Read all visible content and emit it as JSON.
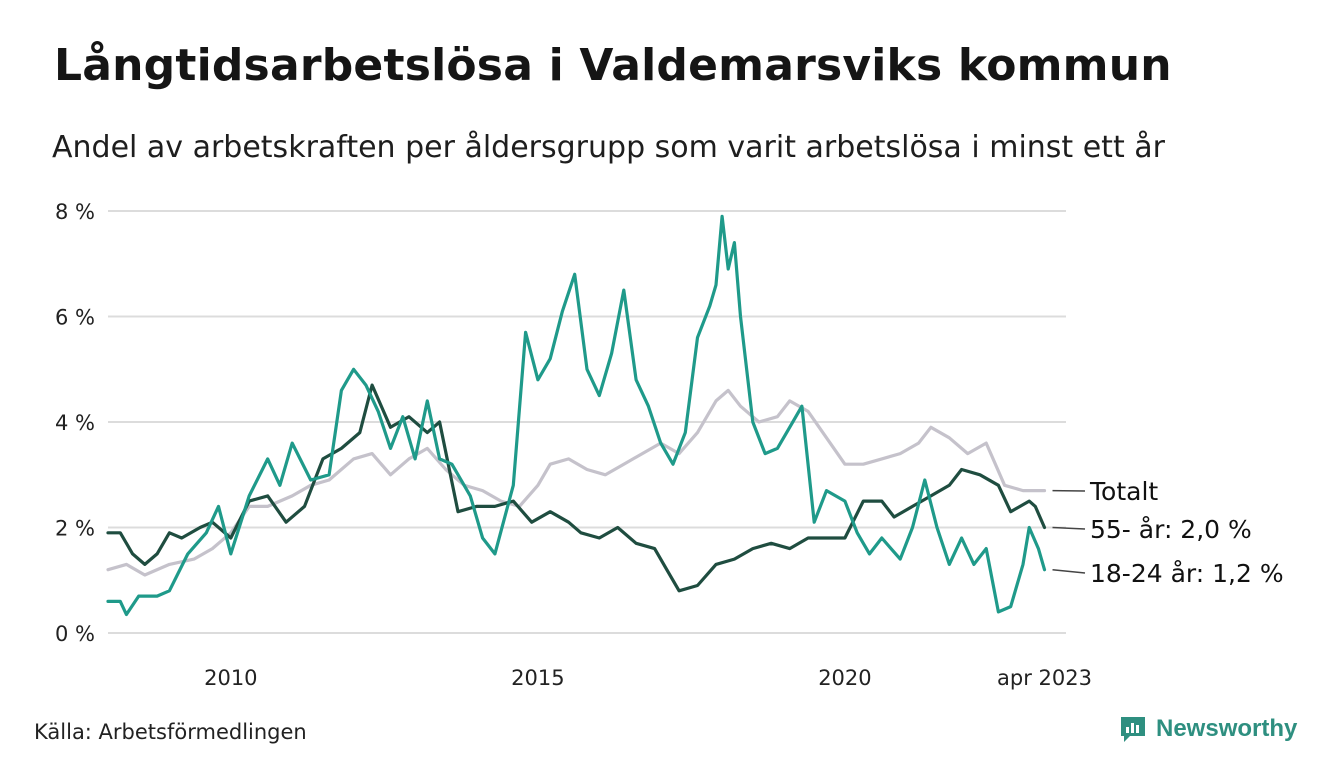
{
  "header": {
    "title": "Långtidsarbetslösa i Valdemarsviks kommun",
    "subtitle": "Andel av arbetskraften per åldersgrupp som varit arbetslösa i minst ett år"
  },
  "footer": {
    "source": "Källa: Arbetsförmedlingen",
    "brand": "Newsworthy"
  },
  "colors": {
    "total": "#c5c2cb",
    "age55": "#1f4d40",
    "age18_24": "#1f9a8a",
    "grid": "#dcdcdc",
    "brand": "#2e8f80"
  },
  "chart_data": {
    "type": "line",
    "title": "Långtidsarbetslösa i Valdemarsviks kommun",
    "xlabel": "",
    "ylabel": "",
    "xlim": [
      2008.0,
      2023.6
    ],
    "ylim": [
      0,
      8
    ],
    "y_ticks": [
      0,
      2,
      4,
      6,
      8
    ],
    "y_tick_labels": [
      "0 %",
      "2 %",
      "4 %",
      "6 %",
      "8 %"
    ],
    "x_ticks": [
      2010,
      2015,
      2020,
      2023.25
    ],
    "x_tick_labels": [
      "2010",
      "2015",
      "2020",
      "apr 2023"
    ],
    "end_labels": [
      "Totalt",
      "55- år: 2,0 %",
      "18-24 år: 1,2 %"
    ],
    "series": [
      {
        "name": "Totalt",
        "color_key": "total",
        "points": [
          [
            2008.0,
            1.2
          ],
          [
            2008.3,
            1.3
          ],
          [
            2008.6,
            1.1
          ],
          [
            2009.0,
            1.3
          ],
          [
            2009.4,
            1.4
          ],
          [
            2009.7,
            1.6
          ],
          [
            2010.0,
            1.9
          ],
          [
            2010.3,
            2.4
          ],
          [
            2010.6,
            2.4
          ],
          [
            2011.0,
            2.6
          ],
          [
            2011.3,
            2.8
          ],
          [
            2011.6,
            2.9
          ],
          [
            2012.0,
            3.3
          ],
          [
            2012.3,
            3.4
          ],
          [
            2012.6,
            3.0
          ],
          [
            2012.9,
            3.3
          ],
          [
            2013.2,
            3.5
          ],
          [
            2013.5,
            3.1
          ],
          [
            2013.8,
            2.8
          ],
          [
            2014.1,
            2.7
          ],
          [
            2014.4,
            2.5
          ],
          [
            2014.7,
            2.4
          ],
          [
            2015.0,
            2.8
          ],
          [
            2015.2,
            3.2
          ],
          [
            2015.5,
            3.3
          ],
          [
            2015.8,
            3.1
          ],
          [
            2016.1,
            3.0
          ],
          [
            2016.4,
            3.2
          ],
          [
            2016.7,
            3.4
          ],
          [
            2017.0,
            3.6
          ],
          [
            2017.3,
            3.4
          ],
          [
            2017.6,
            3.8
          ],
          [
            2017.9,
            4.4
          ],
          [
            2018.1,
            4.6
          ],
          [
            2018.3,
            4.3
          ],
          [
            2018.6,
            4.0
          ],
          [
            2018.9,
            4.1
          ],
          [
            2019.1,
            4.4
          ],
          [
            2019.4,
            4.2
          ],
          [
            2019.7,
            3.7
          ],
          [
            2020.0,
            3.2
          ],
          [
            2020.3,
            3.2
          ],
          [
            2020.6,
            3.3
          ],
          [
            2020.9,
            3.4
          ],
          [
            2021.2,
            3.6
          ],
          [
            2021.4,
            3.9
          ],
          [
            2021.7,
            3.7
          ],
          [
            2022.0,
            3.4
          ],
          [
            2022.3,
            3.6
          ],
          [
            2022.6,
            2.8
          ],
          [
            2022.9,
            2.7
          ],
          [
            2023.1,
            2.7
          ],
          [
            2023.25,
            2.7
          ]
        ]
      },
      {
        "name": "55- år",
        "color_key": "age55",
        "points": [
          [
            2008.0,
            1.9
          ],
          [
            2008.2,
            1.9
          ],
          [
            2008.4,
            1.5
          ],
          [
            2008.6,
            1.3
          ],
          [
            2008.8,
            1.5
          ],
          [
            2009.0,
            1.9
          ],
          [
            2009.2,
            1.8
          ],
          [
            2009.5,
            2.0
          ],
          [
            2009.7,
            2.1
          ],
          [
            2010.0,
            1.8
          ],
          [
            2010.3,
            2.5
          ],
          [
            2010.6,
            2.6
          ],
          [
            2010.9,
            2.1
          ],
          [
            2011.2,
            2.4
          ],
          [
            2011.5,
            3.3
          ],
          [
            2011.8,
            3.5
          ],
          [
            2012.1,
            3.8
          ],
          [
            2012.3,
            4.7
          ],
          [
            2012.6,
            3.9
          ],
          [
            2012.9,
            4.1
          ],
          [
            2013.2,
            3.8
          ],
          [
            2013.4,
            4.0
          ],
          [
            2013.7,
            2.3
          ],
          [
            2014.0,
            2.4
          ],
          [
            2014.3,
            2.4
          ],
          [
            2014.6,
            2.5
          ],
          [
            2014.9,
            2.1
          ],
          [
            2015.2,
            2.3
          ],
          [
            2015.5,
            2.1
          ],
          [
            2015.7,
            1.9
          ],
          [
            2016.0,
            1.8
          ],
          [
            2016.3,
            2.0
          ],
          [
            2016.6,
            1.7
          ],
          [
            2016.9,
            1.6
          ],
          [
            2017.1,
            1.2
          ],
          [
            2017.3,
            0.8
          ],
          [
            2017.6,
            0.9
          ],
          [
            2017.9,
            1.3
          ],
          [
            2018.2,
            1.4
          ],
          [
            2018.5,
            1.6
          ],
          [
            2018.8,
            1.7
          ],
          [
            2019.1,
            1.6
          ],
          [
            2019.4,
            1.8
          ],
          [
            2019.7,
            1.8
          ],
          [
            2020.0,
            1.8
          ],
          [
            2020.3,
            2.5
          ],
          [
            2020.6,
            2.5
          ],
          [
            2020.8,
            2.2
          ],
          [
            2021.1,
            2.4
          ],
          [
            2021.4,
            2.6
          ],
          [
            2021.7,
            2.8
          ],
          [
            2021.9,
            3.1
          ],
          [
            2022.2,
            3.0
          ],
          [
            2022.5,
            2.8
          ],
          [
            2022.7,
            2.3
          ],
          [
            2023.0,
            2.5
          ],
          [
            2023.1,
            2.4
          ],
          [
            2023.25,
            2.0
          ]
        ]
      },
      {
        "name": "18-24 år",
        "color_key": "age18_24",
        "points": [
          [
            2008.0,
            0.6
          ],
          [
            2008.2,
            0.6
          ],
          [
            2008.3,
            0.35
          ],
          [
            2008.5,
            0.7
          ],
          [
            2008.8,
            0.7
          ],
          [
            2009.0,
            0.8
          ],
          [
            2009.3,
            1.5
          ],
          [
            2009.6,
            1.9
          ],
          [
            2009.8,
            2.4
          ],
          [
            2010.0,
            1.5
          ],
          [
            2010.3,
            2.6
          ],
          [
            2010.6,
            3.3
          ],
          [
            2010.8,
            2.8
          ],
          [
            2011.0,
            3.6
          ],
          [
            2011.3,
            2.9
          ],
          [
            2011.6,
            3.0
          ],
          [
            2011.8,
            4.6
          ],
          [
            2012.0,
            5.0
          ],
          [
            2012.2,
            4.7
          ],
          [
            2012.4,
            4.2
          ],
          [
            2012.6,
            3.5
          ],
          [
            2012.8,
            4.1
          ],
          [
            2013.0,
            3.3
          ],
          [
            2013.2,
            4.4
          ],
          [
            2013.4,
            3.3
          ],
          [
            2013.6,
            3.2
          ],
          [
            2013.9,
            2.6
          ],
          [
            2014.1,
            1.8
          ],
          [
            2014.3,
            1.5
          ],
          [
            2014.6,
            2.8
          ],
          [
            2014.8,
            5.7
          ],
          [
            2015.0,
            4.8
          ],
          [
            2015.2,
            5.2
          ],
          [
            2015.4,
            6.1
          ],
          [
            2015.6,
            6.8
          ],
          [
            2015.8,
            5.0
          ],
          [
            2016.0,
            4.5
          ],
          [
            2016.2,
            5.3
          ],
          [
            2016.4,
            6.5
          ],
          [
            2016.6,
            4.8
          ],
          [
            2016.8,
            4.3
          ],
          [
            2017.0,
            3.6
          ],
          [
            2017.2,
            3.2
          ],
          [
            2017.4,
            3.8
          ],
          [
            2017.6,
            5.6
          ],
          [
            2017.8,
            6.2
          ],
          [
            2017.9,
            6.6
          ],
          [
            2018.0,
            7.9
          ],
          [
            2018.1,
            6.9
          ],
          [
            2018.2,
            7.4
          ],
          [
            2018.3,
            6.0
          ],
          [
            2018.5,
            4.0
          ],
          [
            2018.7,
            3.4
          ],
          [
            2018.9,
            3.5
          ],
          [
            2019.1,
            3.9
          ],
          [
            2019.3,
            4.3
          ],
          [
            2019.5,
            2.1
          ],
          [
            2019.7,
            2.7
          ],
          [
            2020.0,
            2.5
          ],
          [
            2020.2,
            1.9
          ],
          [
            2020.4,
            1.5
          ],
          [
            2020.6,
            1.8
          ],
          [
            2020.9,
            1.4
          ],
          [
            2021.1,
            2.0
          ],
          [
            2021.3,
            2.9
          ],
          [
            2021.5,
            2.0
          ],
          [
            2021.7,
            1.3
          ],
          [
            2021.9,
            1.8
          ],
          [
            2022.1,
            1.3
          ],
          [
            2022.3,
            1.6
          ],
          [
            2022.5,
            0.4
          ],
          [
            2022.7,
            0.5
          ],
          [
            2022.9,
            1.3
          ],
          [
            2023.0,
            2.0
          ],
          [
            2023.15,
            1.6
          ],
          [
            2023.25,
            1.2
          ]
        ]
      }
    ]
  }
}
